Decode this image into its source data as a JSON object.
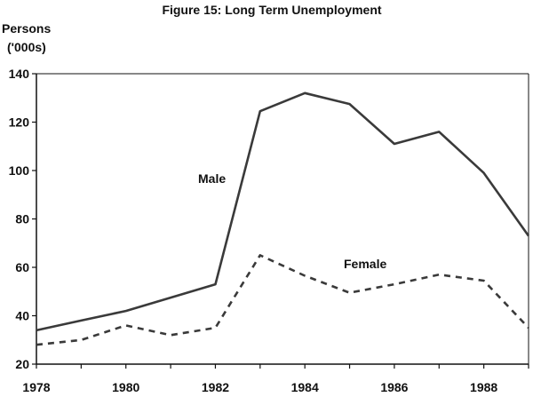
{
  "chart_data": {
    "type": "line",
    "title": "Figure 15: Long Term Unemployment",
    "ylabel_line1": "Persons",
    "ylabel_line2": "('000s)",
    "xlim": [
      1978,
      1989
    ],
    "ylim": [
      20,
      140
    ],
    "yticks": [
      20,
      40,
      60,
      80,
      100,
      120,
      140
    ],
    "xtick_labels": [
      "1978",
      "1980",
      "1982",
      "1984",
      "1986",
      "1988"
    ],
    "grid": false,
    "x": [
      1978,
      1979,
      1980,
      1981,
      1982,
      1983,
      1984,
      1985,
      1986,
      1987,
      1988,
      1989
    ],
    "series": [
      {
        "name": "Male",
        "style": "solid",
        "color": "#3a3a3a",
        "values": [
          34,
          38,
          42,
          47.5,
          53,
          124.5,
          132,
          127.5,
          111,
          116,
          99,
          73
        ]
      },
      {
        "name": "Female",
        "style": "dashed",
        "color": "#3a3a3a",
        "values": [
          28,
          30,
          36,
          32,
          35,
          65,
          56.5,
          49.5,
          53,
          57,
          54.5,
          35
        ]
      }
    ]
  }
}
